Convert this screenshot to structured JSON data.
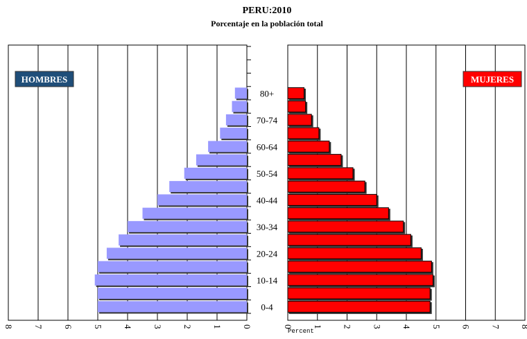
{
  "chart_data": {
    "type": "pyramid",
    "title": "PERU:2010",
    "subtitle": "Porcentaje en la población total",
    "categories": [
      "0-4",
      null,
      "10-14",
      null,
      "20-24",
      null,
      "30-34",
      null,
      "40-44",
      null,
      "50-54",
      null,
      "60-64",
      null,
      "70-74",
      null,
      "80+"
    ],
    "series": [
      {
        "name": "HOMBRES",
        "color": "#9999ff",
        "label_color": "#1f4e79",
        "values": [
          5.0,
          5.0,
          5.1,
          5.0,
          4.7,
          4.3,
          4.0,
          3.5,
          3.0,
          2.6,
          2.1,
          1.7,
          1.3,
          0.9,
          0.7,
          0.5,
          0.4
        ]
      },
      {
        "name": "MUJERES",
        "color": "#ff0000",
        "label_color": "#ff0000",
        "values": [
          4.8,
          4.8,
          4.9,
          4.85,
          4.5,
          4.15,
          3.9,
          3.4,
          3.0,
          2.6,
          2.2,
          1.8,
          1.4,
          1.05,
          0.8,
          0.6,
          0.55
        ]
      }
    ],
    "xlim": [
      0,
      8
    ],
    "xticks": [
      0,
      1,
      2,
      3,
      4,
      5,
      6,
      7,
      8
    ],
    "xlabel": "Percent",
    "grid": true
  }
}
